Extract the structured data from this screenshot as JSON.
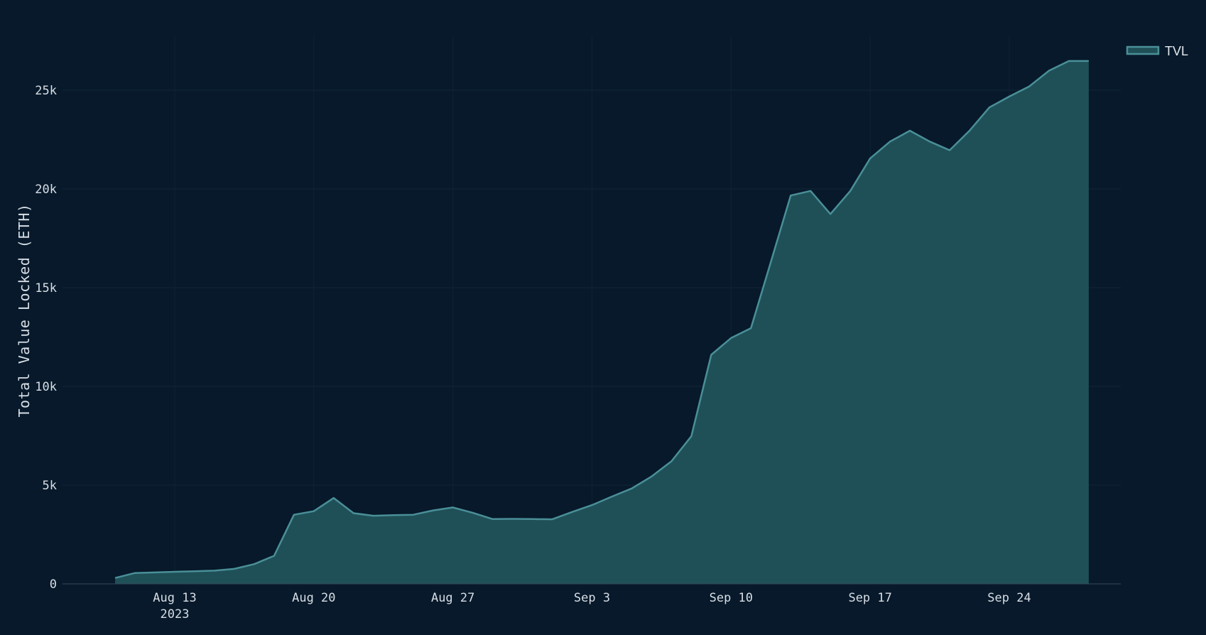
{
  "chart_data": {
    "type": "area",
    "ylabel": "Total Value Locked (ETH)",
    "ylim": [
      0,
      27800
    ],
    "y_ticks": [
      0,
      5000,
      10000,
      15000,
      20000,
      25000
    ],
    "y_tick_labels": [
      "0",
      "5k",
      "10k",
      "15k",
      "20k",
      "25k"
    ],
    "x_ticks": [
      {
        "label": "Aug 13",
        "sub": "2023"
      },
      {
        "label": "Aug 20",
        "sub": ""
      },
      {
        "label": "Aug 27",
        "sub": ""
      },
      {
        "label": "Sep 3",
        "sub": ""
      },
      {
        "label": "Sep 10",
        "sub": ""
      },
      {
        "label": "Sep 17",
        "sub": ""
      },
      {
        "label": "Sep 24",
        "sub": ""
      }
    ],
    "x_range": [
      "2023-08-10",
      "2023-09-30"
    ],
    "x_tick_dates": [
      "2023-08-13",
      "2023-08-20",
      "2023-08-27",
      "2023-09-03",
      "2023-09-10",
      "2023-09-17",
      "2023-09-24"
    ],
    "legend_position": "top-right",
    "grid": true,
    "series": [
      {
        "name": "TVL",
        "color": "#4a8f98",
        "fill": "#1f5058",
        "x": [
          "2023-08-10",
          "2023-08-11",
          "2023-08-12",
          "2023-08-13",
          "2023-08-14",
          "2023-08-15",
          "2023-08-16",
          "2023-08-17",
          "2023-08-18",
          "2023-08-19",
          "2023-08-20",
          "2023-08-21",
          "2023-08-22",
          "2023-08-23",
          "2023-08-24",
          "2023-08-25",
          "2023-08-26",
          "2023-08-27",
          "2023-08-28",
          "2023-08-29",
          "2023-08-30",
          "2023-08-31",
          "2023-09-01",
          "2023-09-02",
          "2023-09-03",
          "2023-09-04",
          "2023-09-05",
          "2023-09-06",
          "2023-09-07",
          "2023-09-08",
          "2023-09-09",
          "2023-09-10",
          "2023-09-11",
          "2023-09-12",
          "2023-09-13",
          "2023-09-14",
          "2023-09-15",
          "2023-09-16",
          "2023-09-17",
          "2023-09-18",
          "2023-09-19",
          "2023-09-20",
          "2023-09-21",
          "2023-09-22",
          "2023-09-23",
          "2023-09-24",
          "2023-09-25",
          "2023-09-26",
          "2023-09-27",
          "2023-09-28"
        ],
        "values": [
          300,
          550,
          580,
          610,
          640,
          670,
          760,
          1000,
          1420,
          3500,
          3680,
          4350,
          3580,
          3450,
          3480,
          3500,
          3720,
          3870,
          3600,
          3280,
          3290,
          3280,
          3270,
          3640,
          3990,
          4420,
          4830,
          5440,
          6210,
          7480,
          11600,
          12450,
          12950,
          16300,
          19670,
          19900,
          18730,
          19900,
          21550,
          22400,
          22950,
          22400,
          21960,
          22950,
          24130,
          24680,
          25190,
          25990,
          26480,
          26480
        ]
      }
    ]
  }
}
